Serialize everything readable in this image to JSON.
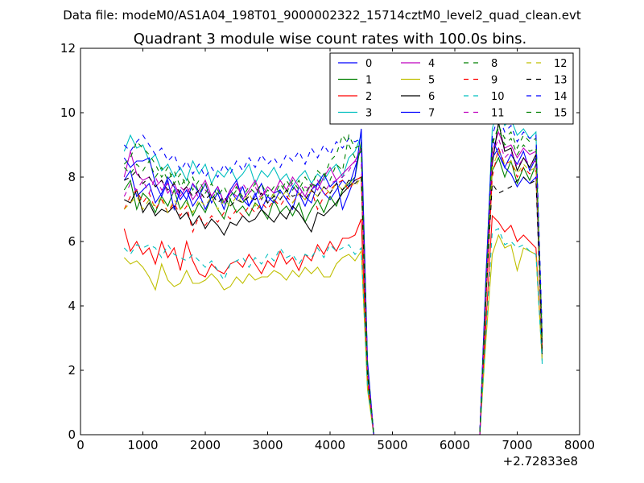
{
  "header": {
    "suptitle": "Data file: modeM0/AS1A04_198T01_9000002322_15714cztM0_level2_quad_clean.evt"
  },
  "chart_data": {
    "type": "line",
    "title": "Quadrant 3 module wise count rates with 100.0s bins.",
    "xlabel": "",
    "ylabel": "",
    "x_offset_label": "+2.72833e8",
    "xlim": [
      0,
      8000
    ],
    "ylim": [
      0,
      12
    ],
    "xticks": [
      0,
      1000,
      2000,
      3000,
      4000,
      5000,
      6000,
      7000,
      8000
    ],
    "yticks": [
      0,
      2,
      4,
      6,
      8,
      10,
      12
    ],
    "grid": false,
    "legend_placement": "top-right",
    "legend_columns": 4,
    "x": [
      700,
      800,
      900,
      1000,
      1100,
      1200,
      1300,
      1400,
      1500,
      1600,
      1700,
      1800,
      1900,
      2000,
      2100,
      2200,
      2300,
      2400,
      2500,
      2600,
      2700,
      2800,
      2900,
      3000,
      3100,
      3200,
      3300,
      3400,
      3500,
      3600,
      3700,
      3800,
      3900,
      4000,
      4100,
      4200,
      4300,
      4400,
      4500,
      4600,
      4700,
      4800,
      4900,
      5000,
      5100,
      5200,
      5300,
      5400,
      5500,
      5600,
      5700,
      5800,
      5900,
      6000,
      6100,
      6200,
      6300,
      6400,
      6500,
      6600,
      6700,
      6800,
      6900,
      7000,
      7100,
      7200,
      7300,
      7400
    ],
    "series": [
      {
        "name": "0",
        "color": "#0000ff",
        "dash": "solid",
        "values": [
          7.9,
          8.2,
          7.4,
          7.6,
          7.8,
          7.2,
          7.5,
          8.0,
          7.7,
          7.3,
          7.6,
          7.1,
          7.4,
          7.8,
          7.2,
          7.5,
          7.0,
          7.6,
          7.3,
          7.7,
          7.1,
          7.4,
          7.8,
          7.2,
          7.5,
          7.6,
          7.3,
          7.0,
          7.7,
          7.4,
          7.2,
          7.8,
          7.5,
          7.3,
          7.6,
          7.9,
          7.7,
          8.3,
          8.9,
          2.0,
          0,
          0,
          0,
          0,
          0,
          0,
          0,
          0,
          0,
          0,
          0,
          0,
          0,
          0,
          0,
          0,
          0,
          0,
          4.5,
          8.6,
          8.9,
          8.3,
          8.7,
          8.4,
          8.8,
          8.2,
          8.6,
          2.9
        ]
      },
      {
        "name": "1",
        "color": "#008000",
        "dash": "solid",
        "values": [
          7.6,
          7.9,
          7.0,
          7.5,
          7.3,
          6.9,
          7.4,
          7.1,
          7.6,
          7.0,
          7.3,
          6.8,
          7.2,
          6.9,
          7.4,
          7.0,
          6.7,
          7.3,
          6.9,
          7.1,
          6.8,
          7.2,
          7.0,
          6.7,
          7.3,
          6.9,
          7.1,
          6.8,
          7.2,
          6.6,
          7.0,
          7.3,
          6.9,
          7.4,
          7.1,
          7.6,
          7.8,
          8.0,
          9.1,
          2.1,
          0,
          0,
          0,
          0,
          0,
          0,
          0,
          0,
          0,
          0,
          0,
          0,
          0,
          0,
          0,
          0,
          0,
          0,
          4.4,
          8.2,
          8.6,
          8.0,
          8.5,
          7.8,
          8.3,
          7.9,
          8.4,
          2.6
        ]
      },
      {
        "name": "2",
        "color": "#ff0000",
        "dash": "solid",
        "values": [
          6.4,
          5.7,
          6.0,
          5.6,
          5.8,
          5.3,
          6.0,
          5.5,
          5.8,
          5.1,
          6.0,
          5.4,
          5.0,
          4.9,
          5.3,
          5.1,
          5.0,
          5.3,
          5.4,
          5.2,
          5.6,
          5.3,
          5.0,
          5.4,
          5.2,
          5.7,
          5.3,
          5.5,
          5.1,
          5.6,
          5.4,
          5.9,
          5.6,
          6.0,
          5.7,
          6.1,
          6.1,
          6.2,
          6.7,
          1.6,
          0,
          0,
          0,
          0,
          0,
          0,
          0,
          0,
          0,
          0,
          0,
          0,
          0,
          0,
          0,
          0,
          0,
          0,
          3.5,
          6.8,
          6.6,
          6.3,
          6.5,
          6.0,
          6.2,
          6.0,
          5.8,
          2.4
        ]
      },
      {
        "name": "3",
        "color": "#00bfbf",
        "dash": "solid",
        "values": [
          8.8,
          9.3,
          8.9,
          9.0,
          8.5,
          8.7,
          8.2,
          8.4,
          8.0,
          8.3,
          7.9,
          8.5,
          8.1,
          8.4,
          7.8,
          8.2,
          8.0,
          8.3,
          7.9,
          8.1,
          8.4,
          7.8,
          8.2,
          8.0,
          8.3,
          7.9,
          8.1,
          7.7,
          8.0,
          8.2,
          7.8,
          8.1,
          7.9,
          8.2,
          8.4,
          8.0,
          8.6,
          8.8,
          9.3,
          2.2,
          0,
          0,
          0,
          0,
          0,
          0,
          0,
          0,
          0,
          0,
          0,
          0,
          0,
          0,
          0,
          0,
          0,
          0,
          4.8,
          9.5,
          10.2,
          9.6,
          9.8,
          9.3,
          9.5,
          9.2,
          9.4,
          2.2
        ]
      },
      {
        "name": "4",
        "color": "#bf00bf",
        "dash": "solid",
        "values": [
          8.0,
          8.8,
          8.1,
          7.9,
          8.0,
          7.7,
          7.9,
          7.5,
          7.8,
          7.4,
          7.7,
          7.3,
          7.6,
          7.9,
          7.4,
          7.7,
          7.2,
          7.5,
          7.8,
          7.3,
          7.6,
          7.9,
          7.4,
          7.7,
          7.5,
          7.9,
          7.6,
          8.0,
          7.7,
          7.4,
          7.8,
          7.6,
          8.0,
          8.3,
          7.9,
          8.1,
          8.3,
          8.5,
          8.9,
          2.1,
          0,
          0,
          0,
          0,
          0,
          0,
          0,
          0,
          0,
          0,
          0,
          0,
          0,
          0,
          0,
          0,
          0,
          0,
          4.6,
          8.8,
          9.4,
          8.9,
          9.0,
          8.6,
          8.9,
          8.7,
          8.8,
          3.0
        ]
      },
      {
        "name": "5",
        "color": "#bfbf00",
        "dash": "solid",
        "values": [
          5.5,
          5.3,
          5.4,
          5.2,
          4.9,
          4.5,
          5.3,
          4.8,
          4.6,
          4.7,
          5.1,
          4.7,
          4.7,
          4.8,
          5.0,
          4.8,
          4.5,
          4.6,
          4.9,
          4.7,
          5.0,
          4.8,
          4.9,
          4.9,
          5.1,
          5.0,
          4.8,
          5.1,
          4.9,
          5.2,
          5.0,
          5.2,
          4.9,
          4.9,
          5.3,
          5.5,
          5.6,
          5.4,
          5.7,
          1.4,
          0,
          0,
          0,
          0,
          0,
          0,
          0,
          0,
          0,
          0,
          0,
          0,
          0,
          0,
          0,
          0,
          0,
          0,
          3.0,
          5.6,
          6.2,
          5.8,
          5.9,
          5.1,
          5.8,
          5.7,
          5.6,
          2.3
        ]
      },
      {
        "name": "6",
        "color": "#000000",
        "dash": "solid",
        "values": [
          7.3,
          7.2,
          7.6,
          6.9,
          7.2,
          6.8,
          7.0,
          6.9,
          7.1,
          6.7,
          6.9,
          6.5,
          6.8,
          6.4,
          6.7,
          6.5,
          6.2,
          6.6,
          6.5,
          6.8,
          6.6,
          6.7,
          7.0,
          6.8,
          6.6,
          6.9,
          6.7,
          7.1,
          6.9,
          6.6,
          6.3,
          6.9,
          6.8,
          7.0,
          7.2,
          7.5,
          7.7,
          7.9,
          8.0,
          1.9,
          0,
          0,
          0,
          0,
          0,
          0,
          0,
          0,
          0,
          0,
          0,
          0,
          0,
          0,
          0,
          0,
          0,
          0,
          4.3,
          8.4,
          9.7,
          8.8,
          8.9,
          8.2,
          8.6,
          8.3,
          8.7,
          2.5
        ]
      },
      {
        "name": "7",
        "color": "#0000ff",
        "dash": "solid",
        "values": [
          8.6,
          8.3,
          8.5,
          8.5,
          8.6,
          7.8,
          7.4,
          7.9,
          7.0,
          7.6,
          7.3,
          7.8,
          7.5,
          7.0,
          7.4,
          7.7,
          7.2,
          7.6,
          7.9,
          7.3,
          7.1,
          7.5,
          7.0,
          7.4,
          7.2,
          7.6,
          7.3,
          7.7,
          7.5,
          7.1,
          7.6,
          7.8,
          8.1,
          7.7,
          7.9,
          7.0,
          7.5,
          8.0,
          9.5,
          2.3,
          0,
          0,
          0,
          0,
          0,
          0,
          0,
          0,
          0,
          0,
          0,
          0,
          0,
          0,
          0,
          0,
          0,
          0,
          5.0,
          9.2,
          8.7,
          8.3,
          8.1,
          7.7,
          8.0,
          7.8,
          8.0,
          2.9
        ]
      },
      {
        "name": "8",
        "color": "#008000",
        "dash": "dashed",
        "values": [
          8.4,
          8.6,
          9.1,
          8.9,
          8.7,
          8.4,
          8.0,
          8.3,
          7.8,
          8.1,
          7.7,
          8.0,
          7.5,
          7.8,
          7.3,
          7.6,
          7.1,
          7.4,
          7.7,
          7.2,
          7.5,
          7.8,
          7.3,
          7.6,
          7.4,
          7.8,
          7.5,
          7.9,
          7.6,
          8.0,
          7.7,
          8.2,
          8.0,
          8.5,
          8.7,
          9.3,
          9.0,
          8.6,
          8.8,
          2.1,
          0,
          0,
          0,
          0,
          0,
          0,
          0,
          0,
          0,
          0,
          0,
          0,
          0,
          0,
          0,
          0,
          0,
          0,
          4.7,
          9.0,
          9.6,
          9.2,
          9.4,
          8.9,
          9.3,
          9.1,
          9.2,
          3.1
        ]
      },
      {
        "name": "9",
        "color": "#ff0000",
        "dash": "dashed",
        "values": [
          7.0,
          7.4,
          7.6,
          7.2,
          7.5,
          7.0,
          7.3,
          6.9,
          7.2,
          6.8,
          7.1,
          6.3,
          6.8,
          6.5,
          6.8,
          6.6,
          6.9,
          6.7,
          7.0,
          6.8,
          7.1,
          6.9,
          7.2,
          7.0,
          7.3,
          7.1,
          7.4,
          7.2,
          7.5,
          7.3,
          7.6,
          7.0,
          7.4,
          7.6,
          7.8,
          7.9,
          7.6,
          7.9,
          8.0,
          1.9,
          0,
          0,
          0,
          0,
          0,
          0,
          0,
          0,
          0,
          0,
          0,
          0,
          0,
          0,
          0,
          0,
          0,
          0,
          4.2,
          8.0,
          8.9,
          8.4,
          8.5,
          8.0,
          8.3,
          8.1,
          8.2,
          2.8
        ]
      },
      {
        "name": "10",
        "color": "#00bfbf",
        "dash": "dashed",
        "values": [
          5.8,
          5.6,
          5.9,
          5.8,
          5.9,
          5.8,
          5.5,
          5.9,
          5.6,
          5.5,
          5.4,
          5.6,
          5.4,
          5.2,
          5.4,
          5.1,
          4.8,
          5.3,
          5.4,
          5.5,
          5.2,
          5.5,
          5.3,
          5.6,
          5.4,
          5.8,
          5.5,
          5.6,
          5.3,
          5.6,
          5.5,
          5.8,
          5.5,
          5.9,
          5.7,
          5.8,
          5.9,
          5.6,
          5.8,
          1.5,
          0,
          0,
          0,
          0,
          0,
          0,
          0,
          0,
          0,
          0,
          0,
          0,
          0,
          0,
          0,
          0,
          0,
          0,
          3.2,
          6.3,
          6.4,
          5.9,
          6.0,
          5.8,
          5.9,
          5.7,
          5.6,
          2.3
        ]
      },
      {
        "name": "11",
        "color": "#bf00bf",
        "dash": "dashed",
        "values": [
          7.4,
          7.8,
          7.6,
          7.9,
          7.5,
          8.0,
          7.6,
          7.8,
          7.4,
          7.7,
          7.5,
          7.8,
          7.3,
          7.6,
          7.4,
          7.7,
          7.2,
          7.6,
          7.4,
          7.8,
          7.5,
          7.7,
          7.3,
          7.7,
          7.5,
          7.9,
          7.6,
          7.8,
          7.4,
          7.7,
          7.6,
          7.9,
          7.5,
          7.8,
          7.9,
          8.0,
          8.2,
          8.5,
          8.4,
          2.0,
          0,
          0,
          0,
          0,
          0,
          0,
          0,
          0,
          0,
          0,
          0,
          0,
          0,
          0,
          0,
          0,
          0,
          0,
          4.5,
          8.7,
          9.2,
          8.6,
          8.8,
          8.3,
          8.6,
          8.4,
          8.5,
          2.9
        ]
      },
      {
        "name": "12",
        "color": "#bfbf00",
        "dash": "dashed",
        "values": [
          7.0,
          7.2,
          7.4,
          7.0,
          7.3,
          7.1,
          7.4,
          6.9,
          7.3,
          7.0,
          7.2,
          6.9,
          7.3,
          7.1,
          7.4,
          7.0,
          7.3,
          7.1,
          7.4,
          7.2,
          7.5,
          7.1,
          7.4,
          7.2,
          7.5,
          7.3,
          7.6,
          7.2,
          7.5,
          7.3,
          7.6,
          7.4,
          7.7,
          7.5,
          7.8,
          7.6,
          7.9,
          7.7,
          8.0,
          1.9,
          0,
          0,
          0,
          0,
          0,
          0,
          0,
          0,
          0,
          0,
          0,
          0,
          0,
          0,
          0,
          0,
          0,
          0,
          4.4,
          8.3,
          8.8,
          8.4,
          8.5,
          8.1,
          8.4,
          8.2,
          8.3,
          2.8
        ]
      },
      {
        "name": "13",
        "color": "#000000",
        "dash": "dashed",
        "values": [
          7.9,
          8.0,
          8.2,
          7.8,
          8.0,
          7.7,
          7.9,
          7.6,
          7.8,
          7.5,
          7.7,
          7.4,
          7.6,
          7.3,
          7.5,
          7.2,
          7.4,
          7.1,
          7.3,
          7.2,
          7.4,
          7.3,
          7.5,
          7.2,
          7.4,
          7.3,
          7.6,
          7.4,
          7.5,
          7.3,
          7.6,
          7.4,
          7.7,
          7.5,
          7.8,
          7.6,
          7.9,
          7.8,
          8.0,
          1.9,
          0,
          0,
          0,
          0,
          0,
          0,
          0,
          0,
          0,
          0,
          0,
          0,
          0,
          0,
          0,
          0,
          0,
          0,
          4.3,
          7.8,
          7.5,
          7.6,
          7.7,
          7.9,
          8.0,
          7.8,
          7.9,
          2.7
        ]
      },
      {
        "name": "14",
        "color": "#0000ff",
        "dash": "dashed",
        "values": [
          9.0,
          8.8,
          9.1,
          9.3,
          9.0,
          8.7,
          8.9,
          8.5,
          8.7,
          8.2,
          8.5,
          8.1,
          8.4,
          8.0,
          8.3,
          8.0,
          8.4,
          8.1,
          8.5,
          8.2,
          8.6,
          8.3,
          8.7,
          8.4,
          8.6,
          8.3,
          8.7,
          8.5,
          8.8,
          8.4,
          8.9,
          8.6,
          9.0,
          8.7,
          9.1,
          8.9,
          9.2,
          9.1,
          9.2,
          2.2,
          0,
          0,
          0,
          0,
          0,
          0,
          0,
          0,
          0,
          0,
          0,
          0,
          0,
          0,
          0,
          0,
          0,
          0,
          4.9,
          9.3,
          9.9,
          9.4,
          9.6,
          9.1,
          9.4,
          9.2,
          9.3,
          3.2
        ]
      },
      {
        "name": "15",
        "color": "#008000",
        "dash": "dashed",
        "values": [
          8.3,
          8.1,
          8.4,
          8.2,
          8.5,
          8.0,
          8.3,
          7.9,
          8.2,
          7.7,
          8.0,
          7.6,
          7.9,
          7.5,
          7.8,
          7.4,
          7.7,
          7.3,
          7.6,
          7.4,
          7.7,
          7.5,
          7.8,
          7.4,
          7.7,
          7.5,
          7.9,
          7.6,
          7.9,
          7.5,
          7.8,
          7.7,
          8.1,
          7.9,
          8.4,
          8.2,
          9.3,
          8.9,
          9.0,
          2.1,
          0,
          0,
          0,
          0,
          0,
          0,
          0,
          0,
          0,
          0,
          0,
          0,
          0,
          0,
          0,
          0,
          0,
          0,
          4.6,
          9.1,
          9.5,
          9.0,
          9.2,
          8.7,
          9.0,
          8.8,
          8.9,
          3.0
        ]
      }
    ]
  }
}
